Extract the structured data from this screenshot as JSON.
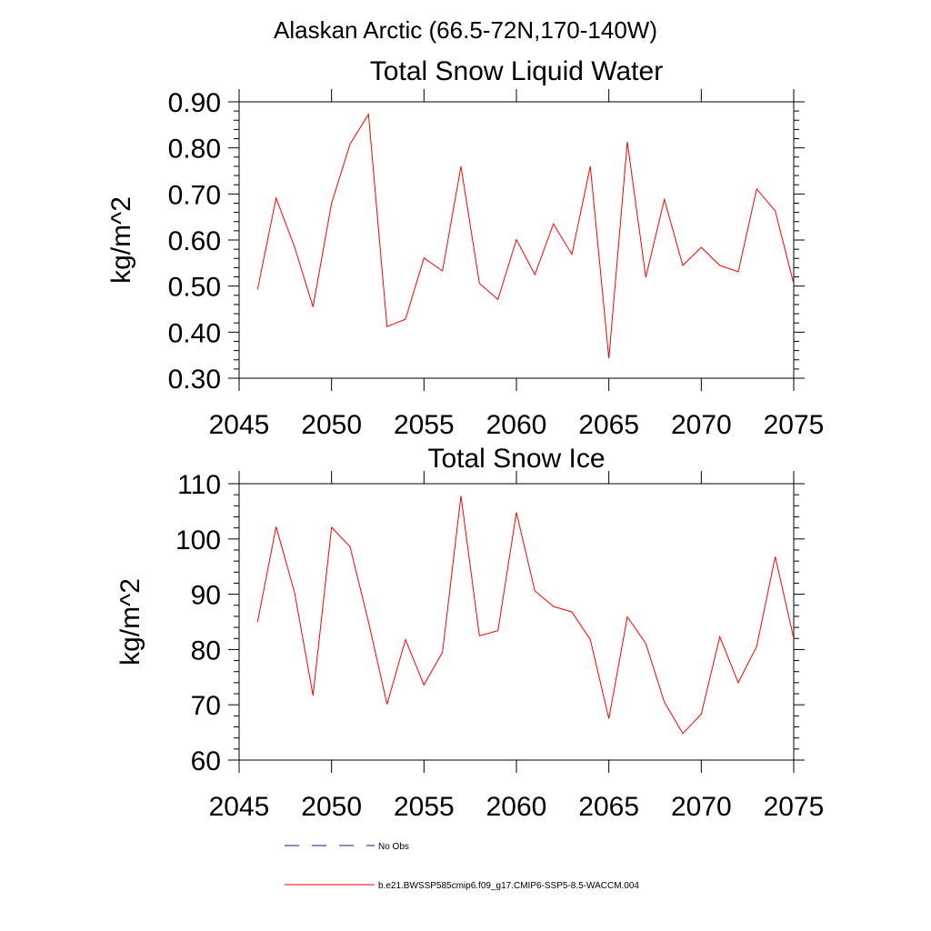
{
  "figure_title": "Alaskan Arctic (66.5-72N,170-140W)",
  "colors": {
    "series": "#ff0000",
    "obs": "#1a1a8c",
    "axis": "#000000"
  },
  "legend": [
    {
      "label": "No Obs",
      "style": "dashed",
      "color": "#1a1a8c"
    },
    {
      "label": "b.e21.BWSSP585cmip6.f09_g17.CMIP6-SSP5-8.5-WACCM.004",
      "style": "solid",
      "color": "#ff0000"
    }
  ],
  "chart_data": [
    {
      "type": "line",
      "title": "Total Snow Liquid Water",
      "xlabel": "",
      "ylabel": "kg/m^2",
      "xlim": [
        2045,
        2075
      ],
      "ylim": [
        0.3,
        0.9
      ],
      "x_ticks": [
        "2045",
        "2050",
        "2055",
        "2060",
        "2065",
        "2070",
        "2075"
      ],
      "y_ticks": [
        "0.30",
        "0.40",
        "0.50",
        "0.60",
        "0.70",
        "0.80",
        "0.90"
      ],
      "grid": false,
      "series": [
        {
          "name": "b.e21.BWSSP585cmip6.f09_g17.CMIP6-SSP5-8.5-WACCM.004",
          "x": [
            2046,
            2047,
            2048,
            2049,
            2050,
            2051,
            2052,
            2053,
            2054,
            2055,
            2056,
            2057,
            2058,
            2059,
            2060,
            2061,
            2062,
            2063,
            2064,
            2065,
            2066,
            2067,
            2068,
            2069,
            2070,
            2071,
            2072,
            2073,
            2074,
            2075
          ],
          "values": [
            0.493,
            0.691,
            0.585,
            0.455,
            0.68,
            0.808,
            0.873,
            0.412,
            0.428,
            0.561,
            0.533,
            0.76,
            0.506,
            0.471,
            0.601,
            0.525,
            0.635,
            0.569,
            0.76,
            0.343,
            0.813,
            0.519,
            0.688,
            0.545,
            0.584,
            0.545,
            0.531,
            0.711,
            0.663,
            0.505
          ]
        }
      ]
    },
    {
      "type": "line",
      "title": "Total Snow Ice",
      "xlabel": "",
      "ylabel": "kg/m^2",
      "xlim": [
        2045,
        2075
      ],
      "ylim": [
        60,
        110
      ],
      "x_ticks": [
        "2045",
        "2050",
        "2055",
        "2060",
        "2065",
        "2070",
        "2075"
      ],
      "y_ticks": [
        "60",
        "70",
        "80",
        "90",
        "100",
        "110"
      ],
      "grid": false,
      "series": [
        {
          "name": "b.e21.BWSSP585cmip6.f09_g17.CMIP6-SSP5-8.5-WACCM.004",
          "x": [
            2046,
            2047,
            2048,
            2049,
            2050,
            2051,
            2052,
            2053,
            2054,
            2055,
            2056,
            2057,
            2058,
            2059,
            2060,
            2061,
            2062,
            2063,
            2064,
            2065,
            2066,
            2067,
            2068,
            2069,
            2070,
            2071,
            2072,
            2073,
            2074,
            2075
          ],
          "values": [
            85.0,
            102.2,
            90.3,
            71.7,
            102.1,
            98.6,
            85.0,
            70.1,
            81.8,
            73.6,
            79.5,
            107.8,
            82.5,
            83.4,
            104.8,
            90.6,
            87.8,
            86.8,
            81.8,
            67.5,
            85.9,
            81.1,
            70.5,
            64.8,
            68.3,
            82.3,
            74.0,
            80.6,
            96.8,
            82.0
          ]
        }
      ]
    }
  ]
}
